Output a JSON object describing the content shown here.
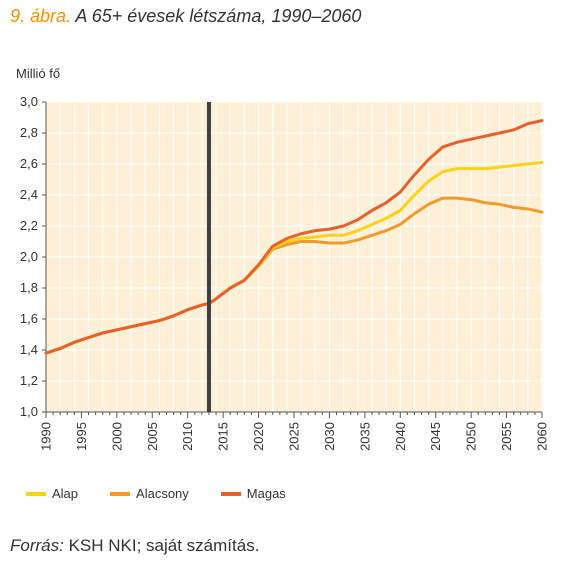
{
  "title": {
    "prefix": "9. ábra.",
    "text": "A 65+ évesek létszáma, 1990–2060"
  },
  "source": {
    "prefix": "Forrás:",
    "text": "KSH NKI; saját számítás."
  },
  "colors": {
    "plot_background": "#fdf0d7",
    "grid": "#ffffff",
    "alap": "#ffd21a",
    "alacsony": "#f39a2b",
    "magas": "#e8602c",
    "marker_line": "#404040",
    "title_accent": "#f39200"
  },
  "chart_data": {
    "type": "line",
    "title": "A 65+ évesek létszáma, 1990–2060",
    "ylabel": "Millió fő",
    "xlabel": "",
    "xlim": [
      1990,
      2060
    ],
    "ylim": [
      1.0,
      3.0
    ],
    "x_ticks": [
      "1990",
      "1995",
      "2000",
      "2005",
      "2010",
      "2015",
      "2020",
      "2025",
      "2030",
      "2035",
      "2040",
      "2045",
      "2050",
      "2055",
      "2060"
    ],
    "y_ticks": [
      "1,0",
      "1,2",
      "1,4",
      "1,6",
      "1,8",
      "2,0",
      "2,2",
      "2,4",
      "2,6",
      "2,8",
      "3,0"
    ],
    "grid": true,
    "vertical_marker_x": 2013,
    "legend_position": "bottom-left",
    "x": [
      1990,
      1992,
      1994,
      1996,
      1998,
      2000,
      2002,
      2004,
      2006,
      2008,
      2010,
      2012,
      2013,
      2014,
      2016,
      2018,
      2020,
      2022,
      2024,
      2026,
      2028,
      2030,
      2032,
      2034,
      2036,
      2038,
      2040,
      2042,
      2044,
      2046,
      2048,
      2050,
      2052,
      2054,
      2056,
      2058,
      2060
    ],
    "series": [
      {
        "name": "Alap",
        "values": [
          1.38,
          1.41,
          1.45,
          1.48,
          1.51,
          1.53,
          1.55,
          1.57,
          1.59,
          1.62,
          1.66,
          1.69,
          1.7,
          1.73,
          1.8,
          1.85,
          1.94,
          2.06,
          2.1,
          2.12,
          2.13,
          2.14,
          2.14,
          2.17,
          2.21,
          2.25,
          2.3,
          2.4,
          2.49,
          2.55,
          2.57,
          2.57,
          2.57,
          2.58,
          2.59,
          2.6,
          2.61
        ]
      },
      {
        "name": "Alacsony",
        "values": [
          1.38,
          1.41,
          1.45,
          1.48,
          1.51,
          1.53,
          1.55,
          1.57,
          1.59,
          1.62,
          1.66,
          1.69,
          1.7,
          1.73,
          1.8,
          1.85,
          1.94,
          2.05,
          2.08,
          2.1,
          2.1,
          2.09,
          2.09,
          2.11,
          2.14,
          2.17,
          2.21,
          2.28,
          2.34,
          2.38,
          2.38,
          2.37,
          2.35,
          2.34,
          2.32,
          2.31,
          2.29
        ]
      },
      {
        "name": "Magas",
        "values": [
          1.38,
          1.41,
          1.45,
          1.48,
          1.51,
          1.53,
          1.55,
          1.57,
          1.59,
          1.62,
          1.66,
          1.69,
          1.7,
          1.73,
          1.8,
          1.85,
          1.95,
          2.07,
          2.12,
          2.15,
          2.17,
          2.18,
          2.2,
          2.24,
          2.3,
          2.35,
          2.42,
          2.53,
          2.63,
          2.71,
          2.74,
          2.76,
          2.78,
          2.8,
          2.82,
          2.86,
          2.88
        ]
      }
    ]
  }
}
